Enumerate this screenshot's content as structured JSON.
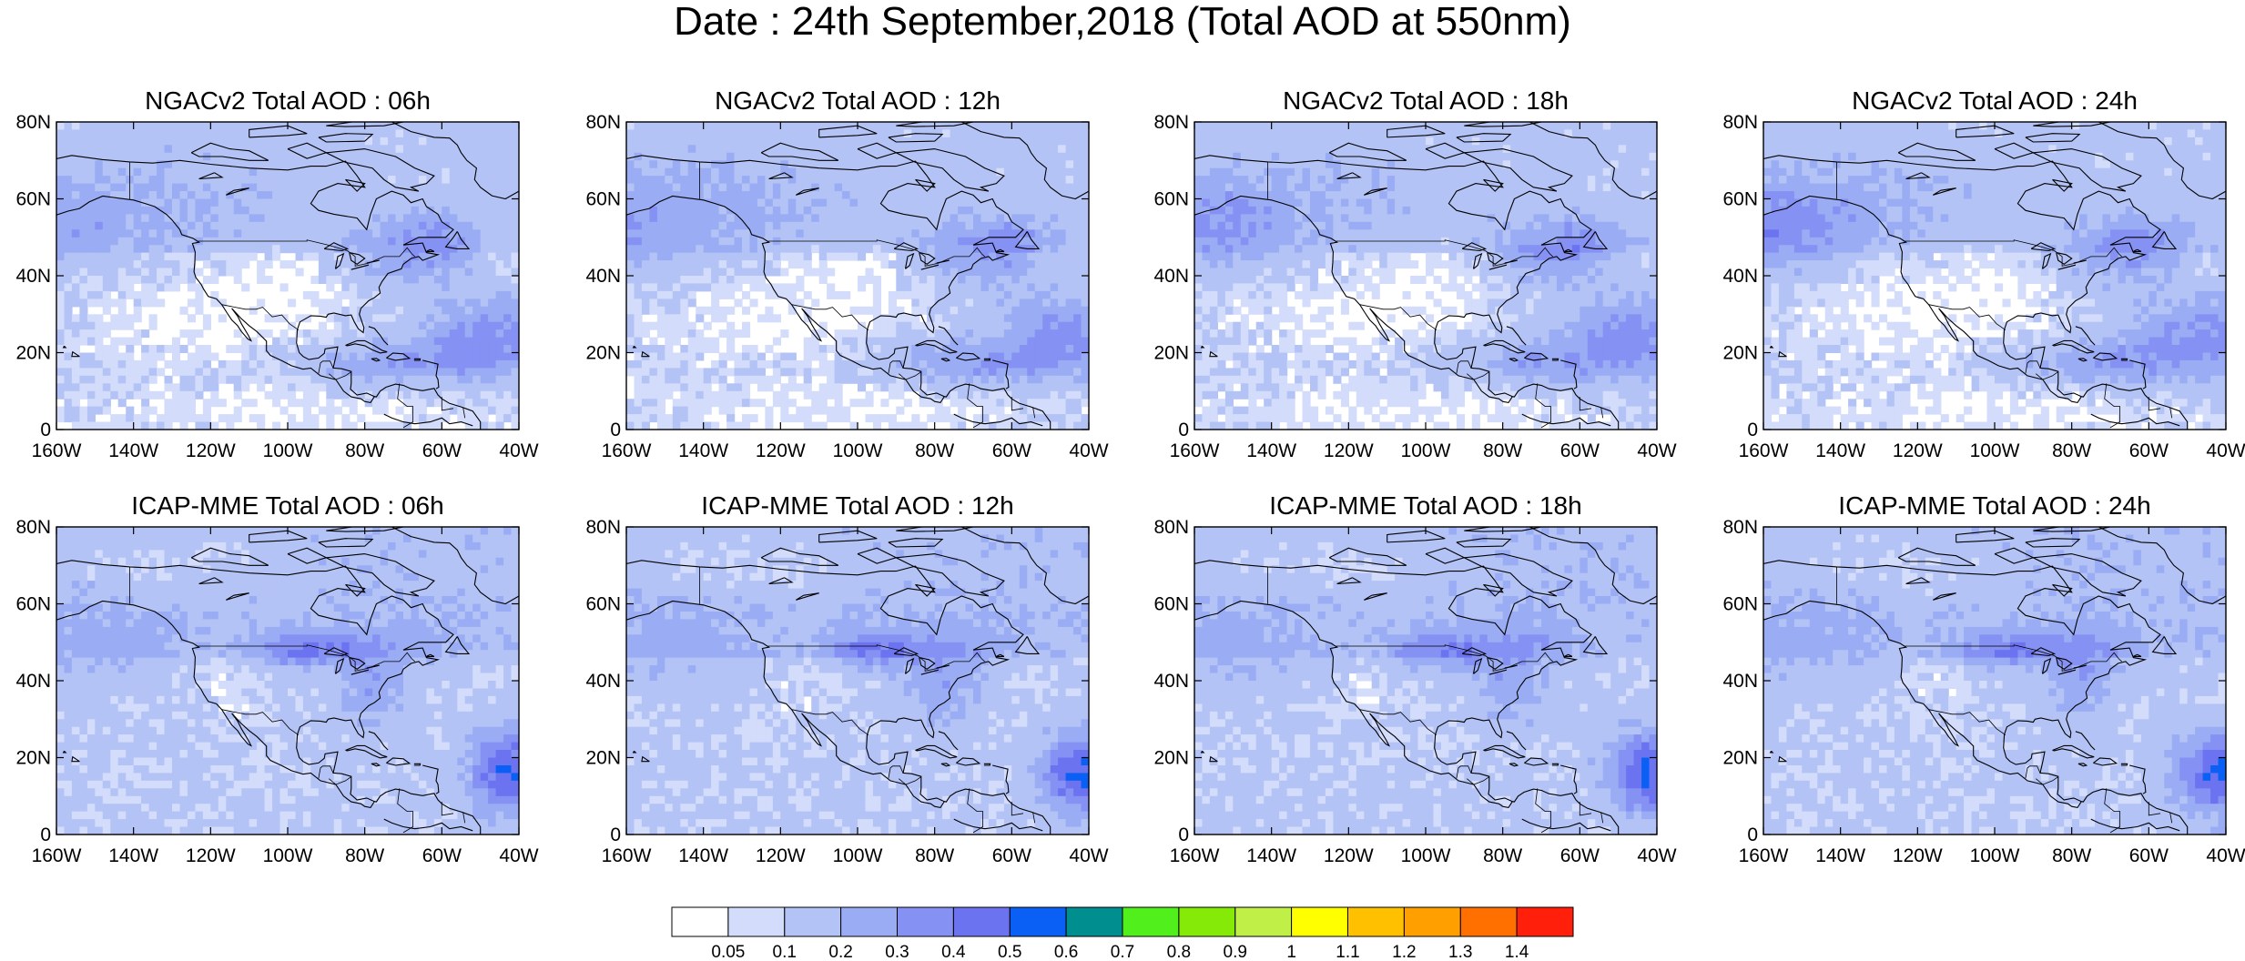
{
  "figure": {
    "title": "Date : 24th September,2018 (Total AOD at 550nm)"
  },
  "panels": [
    {
      "title": "NGACv2 Total AOD : 06h"
    },
    {
      "title": "NGACv2 Total AOD : 12h"
    },
    {
      "title": "NGACv2 Total AOD : 18h"
    },
    {
      "title": "NGACv2 Total AOD : 24h"
    },
    {
      "title": "ICAP-MME Total AOD : 06h"
    },
    {
      "title": "ICAP-MME Total AOD : 12h"
    },
    {
      "title": "ICAP-MME Total AOD : 18h"
    },
    {
      "title": "ICAP-MME Total AOD : 24h"
    }
  ],
  "axes": {
    "lon_ticks": [
      "160W",
      "140W",
      "120W",
      "100W",
      "80W",
      "60W",
      "40W"
    ],
    "lat_ticks": [
      "80N",
      "60N",
      "40N",
      "20N",
      "0"
    ],
    "lon_range": [
      -160,
      -40
    ],
    "lat_range": [
      0,
      80
    ]
  },
  "colorbar": {
    "labels": [
      "0.05",
      "0.1",
      "0.2",
      "0.3",
      "0.4",
      "0.5",
      "0.6",
      "0.7",
      "0.8",
      "0.9",
      "1",
      "1.1",
      "1.2",
      "1.3",
      "1.4"
    ],
    "colors": [
      "#ffffff",
      "#d3dcfb",
      "#b4c3f5",
      "#9aacf4",
      "#8591f3",
      "#6c73f0",
      "#0a60f4",
      "#008e8e",
      "#51f01d",
      "#85ea08",
      "#c0f047",
      "#ffff00",
      "#ffc000",
      "#ffa000",
      "#ff7000",
      "#ff1f0a"
    ]
  }
}
